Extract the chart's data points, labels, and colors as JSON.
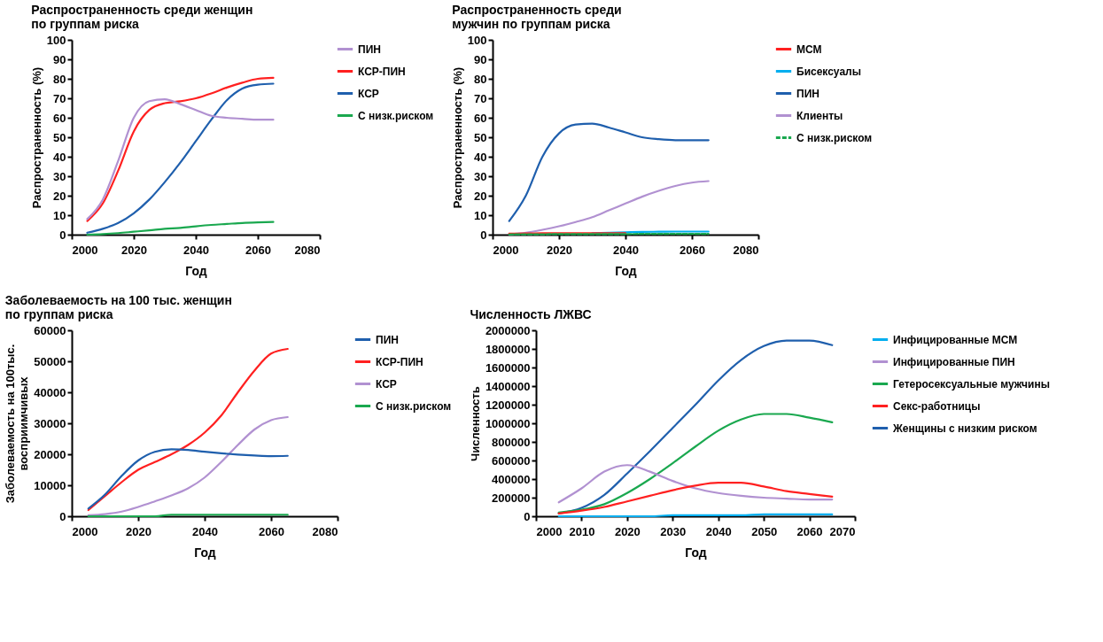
{
  "chart_data": [
    {
      "type": "line",
      "title": [
        "Распространенность среди женщин",
        "по группам риска"
      ],
      "xlabel": "Год",
      "ylabel": "Распространенность  (%)",
      "x": [
        2005,
        2010,
        2015,
        2020,
        2025,
        2030,
        2035,
        2040,
        2045,
        2050,
        2055,
        2060,
        2065
      ],
      "xlim": [
        2000,
        2080
      ],
      "xticks": [
        2000,
        2020,
        2040,
        2060,
        2080
      ],
      "ylim": [
        0,
        100
      ],
      "yticks": [
        0,
        10,
        20,
        30,
        40,
        50,
        60,
        70,
        80,
        90,
        100
      ],
      "grid": false,
      "legend": "right",
      "marker": "none",
      "series": [
        {
          "name": "ПИН",
          "color": "#b191d1",
          "values": [
            8,
            18,
            38,
            60,
            68.5,
            69.5,
            67,
            64,
            61,
            60,
            59.5,
            59,
            59
          ]
        },
        {
          "name": "КСР-ПИН",
          "color": "#ff2020",
          "values": [
            7,
            16,
            33,
            53,
            64,
            67.5,
            68.5,
            70,
            72.5,
            75.5,
            78,
            80,
            80.5
          ]
        },
        {
          "name": "КСР",
          "color": "#1f5fad",
          "values": [
            1,
            3,
            6,
            11,
            18,
            27,
            37,
            48,
            59,
            69,
            75,
            77,
            77.5
          ]
        },
        {
          "name": "С низк.риском",
          "color": "#1aa84f",
          "values": [
            0,
            0.3,
            0.8,
            1.5,
            2.2,
            3,
            3.5,
            4.3,
            5,
            5.5,
            6,
            6.3,
            6.5
          ]
        }
      ]
    },
    {
      "type": "line",
      "title": [
        "Распространенность среди",
        "мужчин по группам риска"
      ],
      "xlabel": "Год",
      "ylabel": "Распространенность  (%)",
      "x": [
        2005,
        2010,
        2015,
        2020,
        2025,
        2030,
        2035,
        2040,
        2045,
        2050,
        2055,
        2060,
        2065
      ],
      "xlim": [
        2000,
        2080
      ],
      "xticks": [
        2000,
        2020,
        2040,
        2060,
        2080
      ],
      "ylim": [
        0,
        100
      ],
      "yticks": [
        0,
        10,
        20,
        30,
        40,
        50,
        60,
        70,
        80,
        90,
        100
      ],
      "grid": false,
      "legend": "right",
      "marker": "none",
      "series": [
        {
          "name": "МСМ",
          "color": "#ff2020",
          "values": [
            0.5,
            0.6,
            0.7,
            0.8,
            0.8,
            0.8,
            0.7,
            0.7,
            null,
            null,
            null,
            null,
            null
          ]
        },
        {
          "name": "Бисексуалы",
          "color": "#00aeef",
          "values": [
            null,
            null,
            null,
            null,
            null,
            0.8,
            1,
            1.2,
            1.4,
            1.5,
            1.6,
            1.6,
            1.6
          ]
        },
        {
          "name": "ПИН",
          "color": "#1f5fad",
          "values": [
            7,
            20,
            40,
            52,
            56.5,
            57,
            55,
            52.5,
            50,
            49,
            48.5,
            48.5,
            48.5
          ]
        },
        {
          "name": "Клиенты",
          "color": "#b191d1",
          "values": [
            0.3,
            1,
            2.5,
            4.3,
            6.5,
            9,
            12.5,
            16,
            19.5,
            22.5,
            25,
            26.7,
            27.5
          ]
        },
        {
          "name": "С низк.риском",
          "color": "#1aa84f",
          "line_style": "dashed",
          "values": [
            0.1,
            0.2,
            0.2,
            0.3,
            0.3,
            0.3,
            0.3,
            0.3,
            0.4,
            0.4,
            0.4,
            0.4,
            0.4
          ]
        }
      ]
    },
    {
      "type": "line",
      "title": [
        "Заболеваемость на 100 тыс. женщин",
        "по группам риска"
      ],
      "xlabel": "Год",
      "ylabel": [
        "Заболеваемость на 100тыс.",
        "восприимчивых"
      ],
      "x": [
        2005,
        2010,
        2015,
        2020,
        2025,
        2030,
        2035,
        2040,
        2045,
        2050,
        2055,
        2060,
        2065
      ],
      "xlim": [
        2000,
        2080
      ],
      "xticks": [
        2000,
        2020,
        2040,
        2060,
        2080
      ],
      "ylim": [
        0,
        60000
      ],
      "yticks": [
        0,
        10000,
        20000,
        30000,
        40000,
        50000,
        60000
      ],
      "grid": false,
      "legend": "right",
      "marker": "none",
      "series": [
        {
          "name": "ПИН",
          "color": "#1f5fad",
          "values": [
            2500,
            7000,
            13000,
            18000,
            20800,
            21600,
            21400,
            20800,
            20300,
            19900,
            19600,
            19400,
            19500
          ]
        },
        {
          "name": "КСР-ПИН",
          "color": "#ff2020",
          "values": [
            2000,
            6500,
            11000,
            15000,
            17500,
            20000,
            23000,
            27000,
            32500,
            40000,
            47000,
            52500,
            54000
          ]
        },
        {
          "name": "КСР",
          "color": "#b191d1",
          "values": [
            300,
            700,
            1500,
            3000,
            4800,
            6700,
            9000,
            12500,
            17500,
            23000,
            28000,
            31000,
            32000
          ]
        },
        {
          "name": "С низк.риском",
          "color": "#1aa84f",
          "values": [
            0,
            0,
            0,
            0,
            0,
            500,
            500,
            500,
            500,
            500,
            500,
            500,
            500
          ]
        }
      ]
    },
    {
      "type": "line",
      "title": [
        "Численность ЛЖВС"
      ],
      "xlabel": "Год",
      "ylabel": "Численность",
      "x": [
        2005,
        2010,
        2015,
        2020,
        2025,
        2030,
        2035,
        2040,
        2045,
        2050,
        2055,
        2060,
        2065
      ],
      "xlim": [
        2000,
        2070
      ],
      "xticks": [
        2000,
        2010,
        2020,
        2030,
        2040,
        2050,
        2060,
        2070
      ],
      "ylim": [
        0,
        2000000
      ],
      "yticks": [
        0,
        200000,
        400000,
        600000,
        800000,
        1000000,
        1200000,
        1400000,
        1600000,
        1800000,
        2000000
      ],
      "grid": false,
      "legend": "right",
      "marker": "none",
      "series": [
        {
          "name": "Инфицированные МСМ",
          "color": "#00aeef",
          "values": [
            0,
            0,
            0,
            0,
            0,
            10000,
            10000,
            10000,
            10000,
            20000,
            20000,
            20000,
            20000
          ]
        },
        {
          "name": "Инфицированные ПИН",
          "color": "#b191d1",
          "values": [
            150000,
            300000,
            480000,
            550000,
            480000,
            380000,
            300000,
            250000,
            220000,
            200000,
            190000,
            180000,
            180000
          ]
        },
        {
          "name": "Гетеросексуальные мужчины",
          "color": "#1aa84f",
          "values": [
            40000,
            70000,
            130000,
            250000,
            400000,
            570000,
            750000,
            920000,
            1040000,
            1100000,
            1100000,
            1060000,
            1010000
          ]
        },
        {
          "name": "Секс-работницы",
          "color": "#ff2020",
          "values": [
            30000,
            60000,
            100000,
            160000,
            220000,
            280000,
            330000,
            360000,
            360000,
            320000,
            270000,
            240000,
            210000
          ]
        },
        {
          "name": "Женщины с низким риском",
          "color": "#1f5fad",
          "values": [
            30000,
            90000,
            230000,
            460000,
            700000,
            950000,
            1200000,
            1460000,
            1680000,
            1830000,
            1890000,
            1890000,
            1840000
          ]
        }
      ]
    }
  ]
}
